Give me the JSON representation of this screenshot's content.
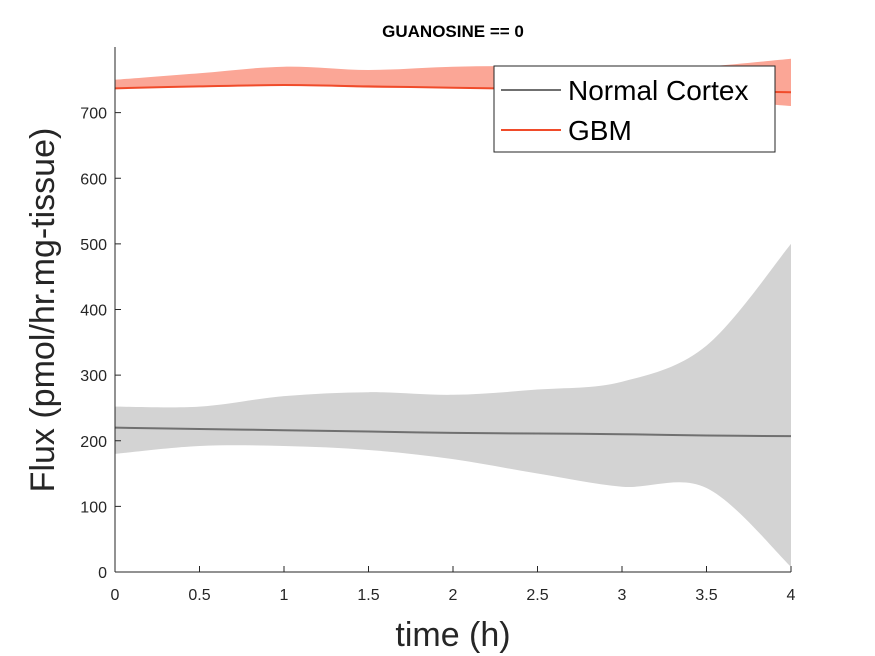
{
  "chart_data": {
    "type": "line",
    "title": "GUANOSINE == 0",
    "xlabel": "time (h)",
    "ylabel": "Flux (pmol/hr.mg-tissue)",
    "xlim": [
      0,
      4
    ],
    "ylim": [
      0,
      800
    ],
    "xticks": [
      0,
      0.5,
      1,
      1.5,
      2,
      2.5,
      3,
      3.5,
      4
    ],
    "xtick_labels": [
      "0",
      "0.5",
      "1",
      "1.5",
      "2",
      "2.5",
      "3",
      "3.5",
      "4"
    ],
    "yticks": [
      0,
      100,
      200,
      300,
      400,
      500,
      600,
      700
    ],
    "ytick_labels": [
      "0",
      "100",
      "200",
      "300",
      "400",
      "500",
      "600",
      "700"
    ],
    "grid": false,
    "legend_position": "top-right",
    "series": [
      {
        "name": "Normal Cortex",
        "line_color": "#707070",
        "band_color": "#d3d3d3",
        "x": [
          0,
          0.5,
          1,
          1.5,
          2,
          2.5,
          3,
          3.5,
          4
        ],
        "mean": [
          220,
          218,
          216,
          214,
          212,
          211,
          210,
          208,
          207
        ],
        "upper": [
          252,
          252,
          268,
          274,
          270,
          278,
          290,
          345,
          500
        ],
        "lower": [
          180,
          192,
          192,
          186,
          172,
          150,
          130,
          128,
          8
        ]
      },
      {
        "name": "GBM",
        "line_color": "#f04b2a",
        "band_color": "#fba696",
        "x": [
          0,
          0.5,
          1,
          1.5,
          2,
          2.5,
          3,
          3.5,
          4
        ],
        "mean": [
          737,
          740,
          742,
          740,
          738,
          736,
          734,
          733,
          731
        ],
        "upper": [
          750,
          760,
          770,
          765,
          770,
          770,
          762,
          770,
          782
        ],
        "lower": [
          736,
          740,
          742,
          738,
          738,
          735,
          728,
          720,
          710
        ]
      }
    ]
  }
}
